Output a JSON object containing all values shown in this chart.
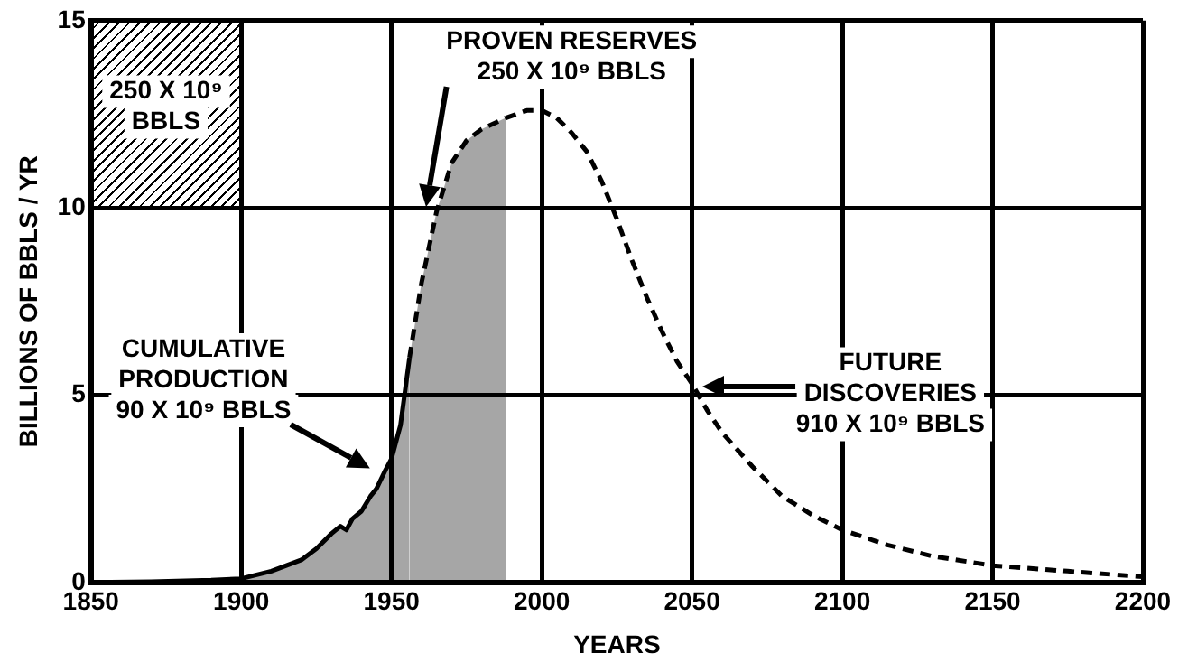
{
  "chart_data": {
    "type": "line",
    "xlabel": "YEARS",
    "ylabel": "BILLIONS OF BBLS / YR",
    "xlim": [
      1850,
      2200
    ],
    "xticks": [
      1850,
      1900,
      1950,
      2000,
      2050,
      2100,
      2150,
      2200
    ],
    "ylim": [
      0,
      15
    ],
    "yticks": [
      0,
      5,
      10,
      15
    ],
    "grid": true,
    "marker": "none",
    "series": [
      {
        "type": "area",
        "color": "#000000",
        "line_style": "solid",
        "x": [
          1850,
          1870,
          1890,
          1900,
          1910,
          1920,
          1925,
          1930,
          1933,
          1935,
          1937,
          1940,
          1943,
          1945,
          1948,
          1950,
          1953,
          1956
        ],
        "values": [
          0,
          0.02,
          0.06,
          0.1,
          0.3,
          0.6,
          0.9,
          1.3,
          1.5,
          1.4,
          1.7,
          1.9,
          2.3,
          2.5,
          3.0,
          3.3,
          4.2,
          6.0
        ]
      },
      {
        "type": "area",
        "color": "#000000",
        "line_style": "dashed",
        "x": [
          1956,
          1960,
          1965,
          1970,
          1975,
          1980,
          1988
        ],
        "values": [
          6.0,
          8.0,
          9.9,
          11.2,
          11.8,
          12.1,
          12.4
        ]
      },
      {
        "type": "line",
        "color": "#000000",
        "line_style": "dashed",
        "x": [
          1988,
          1995,
          2000,
          2005,
          2010,
          2015,
          2020,
          2025,
          2030,
          2035,
          2040,
          2045,
          2050,
          2055,
          2060,
          2070,
          2080,
          2090,
          2100,
          2115,
          2130,
          2150,
          2175,
          2200
        ],
        "values": [
          12.4,
          12.6,
          12.6,
          12.4,
          12.0,
          11.5,
          10.7,
          9.7,
          8.6,
          7.6,
          6.7,
          5.9,
          5.3,
          4.6,
          4.0,
          3.1,
          2.3,
          1.8,
          1.4,
          1.0,
          0.7,
          0.45,
          0.3,
          0.15
        ]
      }
    ],
    "annotations": [
      "250 X 10⁹\nBBLS",
      "PROVEN RESERVES\n250 X 10⁹ BBLS",
      "CUMULATIVE\nPRODUCTION\n90 X 10⁹ BBLS",
      "FUTURE\nDISCOVERIES\n910 X 10⁹ BBLS"
    ]
  }
}
